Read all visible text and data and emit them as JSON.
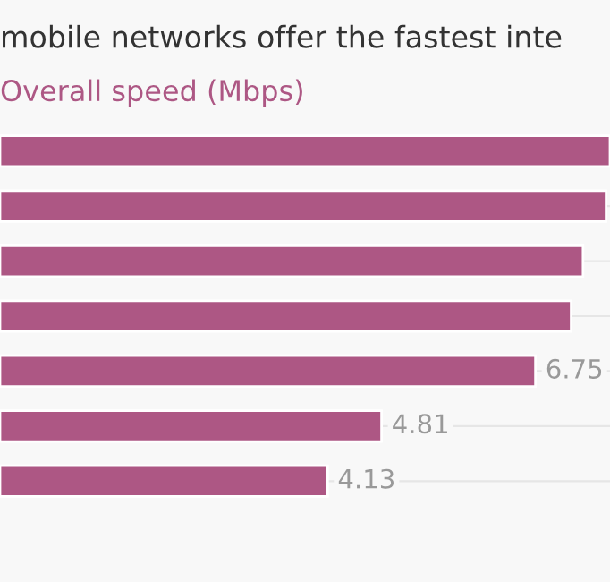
{
  "chart_data": {
    "type": "bar",
    "orientation": "horizontal",
    "title": "mobile networks offer the fastest inte",
    "subtitle": "Overall speed (Mbps)",
    "categories": [
      null,
      null,
      null,
      null,
      null,
      null,
      null
    ],
    "values": [
      7.69,
      7.64,
      7.35,
      7.2,
      6.75,
      4.81,
      4.13
    ],
    "value_labels": [
      null,
      null,
      null,
      null,
      "6.75",
      "4.81",
      "4.13"
    ],
    "color": "#ad5784",
    "grid": "y",
    "legend": false
  }
}
